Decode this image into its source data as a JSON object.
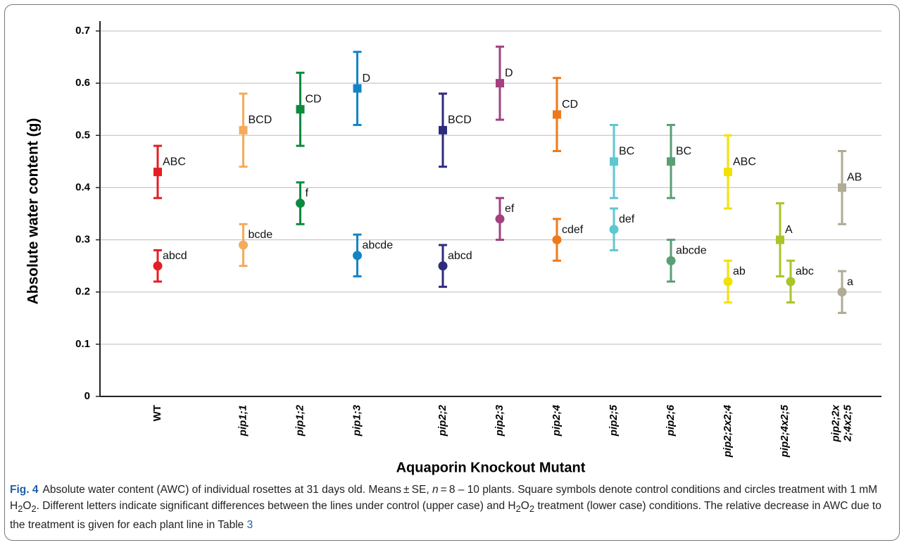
{
  "chart_data": {
    "type": "errorbar",
    "y_label": "Absolute water content (g)",
    "x_label": "Aquaporin Knockout Mutant",
    "categories": [
      "WT",
      "pip1;1",
      "pip1;2",
      "pip1;3",
      "pip2;2",
      "pip2;3",
      "pip2;4",
      "pip2;5",
      "pip2;6",
      "pip2;2x2;4",
      "pip2;4x2;5",
      "pip2;2x2;4x2;5"
    ],
    "category_italic": [
      false,
      true,
      true,
      true,
      true,
      true,
      true,
      true,
      true,
      true,
      true,
      true
    ],
    "colors": [
      "#e31e24",
      "#f4ab5c",
      "#0b8a3e",
      "#1384c6",
      "#2e2a7c",
      "#a3407f",
      "#ec7a1c",
      "#5ec8d0",
      "#5a9e74",
      "#f2e200",
      "#a8c52a",
      "#b0ab95"
    ],
    "series": [
      {
        "marker": "square",
        "values": [
          0.43,
          0.51,
          0.55,
          0.59,
          0.51,
          0.6,
          0.54,
          0.45,
          0.45,
          0.43,
          0.3,
          0.4
        ],
        "errors": [
          0.05,
          0.07,
          0.07,
          0.07,
          0.07,
          0.07,
          0.07,
          0.07,
          0.07,
          0.07,
          0.07,
          0.07
        ],
        "letters": [
          "ABC",
          "BCD",
          "CD",
          "D",
          "BCD",
          "D",
          "CD",
          "BC",
          "BC",
          "ABC",
          "A",
          "AB"
        ]
      },
      {
        "marker": "circle",
        "values": [
          0.25,
          0.29,
          0.37,
          0.27,
          0.25,
          0.34,
          0.3,
          0.32,
          0.26,
          0.22,
          0.22,
          0.2
        ],
        "errors": [
          0.03,
          0.04,
          0.04,
          0.04,
          0.04,
          0.04,
          0.04,
          0.04,
          0.04,
          0.04,
          0.04,
          0.04
        ],
        "letters": [
          "abcd",
          "bcde",
          "f",
          "abcde",
          "abcd",
          "ef",
          "cdef",
          "def",
          "abcde",
          "ab",
          "abc",
          "a"
        ]
      }
    ],
    "ylim": [
      0,
      0.7
    ],
    "yticks": [
      0,
      0.1,
      0.2,
      0.3,
      0.4,
      0.5,
      0.6,
      0.7
    ],
    "grid": true
  },
  "caption": {
    "label": "Fig. 4",
    "parts": [
      "Absolute water content (AWC) of individual rosettes at 31 days old. Means ± SE, ",
      "n",
      " = 8 – 10 plants. Square symbols denote control conditions and circles treatment with 1 mM H",
      "2",
      "O",
      "2",
      ". Different letters indicate significant differences between the lines under control (upper case) and H",
      "2",
      "O",
      "2",
      " treatment (lower case) conditions. The relative decrease in AWC due to the treatment is given for each plant line in Table ",
      "3"
    ]
  }
}
